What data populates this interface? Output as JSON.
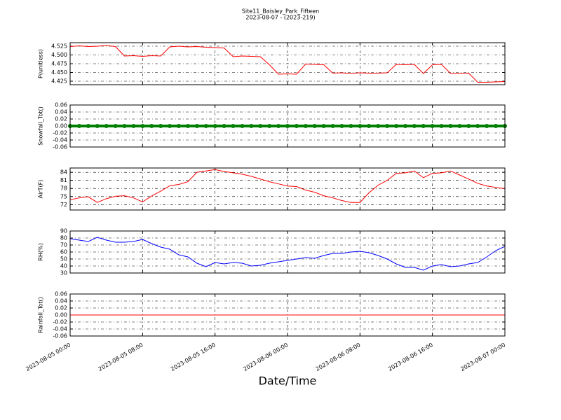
{
  "chart_data": [
    {
      "type": "line",
      "title": "Site11_Baisley_Park_Fifteen",
      "subtitle": "2023-08-07 - (2023-219)",
      "ylabel": "P(unitless)",
      "color": "#ff0000",
      "grid": true,
      "xlim": [
        "2023-08-05 00:00",
        "2023-08-07 00:00"
      ],
      "ylim": [
        4.415,
        4.535
      ],
      "yticks": [
        4.425,
        {
          "value": 4.45,
          "label": "4.450"
        },
        4.475,
        {
          "value": 4.5,
          "label": "4.500"
        },
        4.525
      ],
      "x": [
        "2023-08-05 00:00",
        "2023-08-05 01:00",
        "2023-08-05 02:00",
        "2023-08-05 03:00",
        "2023-08-05 04:00",
        "2023-08-05 05:00",
        "2023-08-05 06:00",
        "2023-08-05 07:00",
        "2023-08-05 08:00",
        "2023-08-05 09:00",
        "2023-08-05 10:00",
        "2023-08-05 11:00",
        "2023-08-05 12:00",
        "2023-08-05 13:00",
        "2023-08-05 14:00",
        "2023-08-05 15:00",
        "2023-08-05 16:00",
        "2023-08-05 17:00",
        "2023-08-05 18:00",
        "2023-08-05 19:00",
        "2023-08-05 20:00",
        "2023-08-05 21:00",
        "2023-08-05 22:00",
        "2023-08-05 23:00",
        "2023-08-06 00:00",
        "2023-08-06 01:00",
        "2023-08-06 02:00",
        "2023-08-06 03:00",
        "2023-08-06 04:00",
        "2023-08-06 05:00",
        "2023-08-06 06:00",
        "2023-08-06 07:00",
        "2023-08-06 08:00",
        "2023-08-06 09:00",
        "2023-08-06 10:00",
        "2023-08-06 11:00",
        "2023-08-06 12:00",
        "2023-08-06 13:00",
        "2023-08-06 14:00",
        "2023-08-06 15:00",
        "2023-08-06 16:00",
        "2023-08-06 17:00",
        "2023-08-06 18:00",
        "2023-08-06 19:00",
        "2023-08-06 20:00",
        "2023-08-06 21:00",
        "2023-08-06 22:00",
        "2023-08-06 23:00",
        "2023-08-07 00:00"
      ],
      "values": [
        4.524,
        4.526,
        4.524,
        4.525,
        4.527,
        4.524,
        4.497,
        4.498,
        4.496,
        4.498,
        4.497,
        4.523,
        4.525,
        4.523,
        4.524,
        4.522,
        4.521,
        4.52,
        4.495,
        4.497,
        4.496,
        4.495,
        4.472,
        4.445,
        4.446,
        4.445,
        4.474,
        4.473,
        4.472,
        4.448,
        4.449,
        4.447,
        4.449,
        4.448,
        4.448,
        4.449,
        4.473,
        4.472,
        4.473,
        4.447,
        4.472,
        4.473,
        4.447,
        4.447,
        4.448,
        4.422,
        4.422,
        4.423,
        4.424
      ]
    },
    {
      "type": "line",
      "ylabel": "Snowfall_Tot()",
      "color": "#008000",
      "marker": true,
      "grid": true,
      "xlim": [
        "2023-08-05 00:00",
        "2023-08-07 00:00"
      ],
      "ylim": [
        -0.06,
        0.06
      ],
      "yticks": [
        -0.06,
        -0.04,
        -0.02,
        {
          "value": 0,
          "label": "0.00"
        },
        0.02,
        0.04,
        0.06
      ],
      "x": [
        "2023-08-05 00:00",
        "2023-08-05 01:00",
        "2023-08-05 02:00",
        "2023-08-05 03:00",
        "2023-08-05 04:00",
        "2023-08-05 05:00",
        "2023-08-05 06:00",
        "2023-08-05 07:00",
        "2023-08-05 08:00",
        "2023-08-05 09:00",
        "2023-08-05 10:00",
        "2023-08-05 11:00",
        "2023-08-05 12:00",
        "2023-08-05 13:00",
        "2023-08-05 14:00",
        "2023-08-05 15:00",
        "2023-08-05 16:00",
        "2023-08-05 17:00",
        "2023-08-05 18:00",
        "2023-08-05 19:00",
        "2023-08-05 20:00",
        "2023-08-05 21:00",
        "2023-08-05 22:00",
        "2023-08-05 23:00",
        "2023-08-06 00:00",
        "2023-08-06 01:00",
        "2023-08-06 02:00",
        "2023-08-06 03:00",
        "2023-08-06 04:00",
        "2023-08-06 05:00",
        "2023-08-06 06:00",
        "2023-08-06 07:00",
        "2023-08-06 08:00",
        "2023-08-06 09:00",
        "2023-08-06 10:00",
        "2023-08-06 11:00",
        "2023-08-06 12:00",
        "2023-08-06 13:00",
        "2023-08-06 14:00",
        "2023-08-06 15:00",
        "2023-08-06 16:00",
        "2023-08-06 17:00",
        "2023-08-06 18:00",
        "2023-08-06 19:00",
        "2023-08-06 20:00",
        "2023-08-06 21:00",
        "2023-08-06 22:00",
        "2023-08-06 23:00",
        "2023-08-07 00:00"
      ],
      "values": [
        0,
        0,
        0,
        0,
        0,
        0,
        0,
        0,
        0,
        0,
        0,
        0,
        0,
        0,
        0,
        0,
        0,
        0,
        0,
        0,
        0,
        0,
        0,
        0,
        0,
        0,
        0,
        0,
        0,
        0,
        0,
        0,
        0,
        0,
        0,
        0,
        0,
        0,
        0,
        0,
        0,
        0,
        0,
        0,
        0,
        0,
        0,
        0,
        0
      ]
    },
    {
      "type": "line",
      "ylabel": "AirT(F)",
      "color": "#ff0000",
      "grid": true,
      "xlim": [
        "2023-08-05 00:00",
        "2023-08-07 00:00"
      ],
      "ylim": [
        70,
        85.6
      ],
      "yticks": [
        72,
        75,
        78,
        81,
        84
      ],
      "x": [
        "2023-08-05 00:00",
        "2023-08-05 01:00",
        "2023-08-05 02:00",
        "2023-08-05 03:00",
        "2023-08-05 04:00",
        "2023-08-05 05:00",
        "2023-08-05 06:00",
        "2023-08-05 07:00",
        "2023-08-05 08:00",
        "2023-08-05 09:00",
        "2023-08-05 10:00",
        "2023-08-05 11:00",
        "2023-08-05 12:00",
        "2023-08-05 13:00",
        "2023-08-05 14:00",
        "2023-08-05 15:00",
        "2023-08-05 16:00",
        "2023-08-05 17:00",
        "2023-08-05 18:00",
        "2023-08-05 19:00",
        "2023-08-05 20:00",
        "2023-08-05 21:00",
        "2023-08-05 22:00",
        "2023-08-05 23:00",
        "2023-08-06 00:00",
        "2023-08-06 01:00",
        "2023-08-06 02:00",
        "2023-08-06 03:00",
        "2023-08-06 04:00",
        "2023-08-06 05:00",
        "2023-08-06 06:00",
        "2023-08-06 07:00",
        "2023-08-06 08:00",
        "2023-08-06 09:00",
        "2023-08-06 10:00",
        "2023-08-06 11:00",
        "2023-08-06 12:00",
        "2023-08-06 13:00",
        "2023-08-06 14:00",
        "2023-08-06 15:00",
        "2023-08-06 16:00",
        "2023-08-06 17:00",
        "2023-08-06 18:00",
        "2023-08-06 19:00",
        "2023-08-06 20:00",
        "2023-08-06 21:00",
        "2023-08-06 22:00",
        "2023-08-06 23:00",
        "2023-08-07 00:00"
      ],
      "values": [
        73.8,
        74.5,
        74.9,
        72.8,
        74.2,
        75.1,
        75.3,
        74.5,
        73,
        75.2,
        77,
        79,
        79.5,
        80.5,
        84,
        84.5,
        85,
        84.3,
        83.8,
        83.3,
        82.5,
        81.5,
        80.5,
        79.7,
        78.9,
        78.7,
        77.4,
        76.6,
        75.3,
        74.5,
        73.5,
        72.8,
        72.8,
        76.4,
        79.2,
        81,
        83.6,
        83.8,
        84.5,
        82,
        83.6,
        83.8,
        84.5,
        83,
        81.5,
        79.9,
        78.9,
        78.4,
        77.9
      ]
    },
    {
      "type": "line",
      "ylabel": "RH(%)",
      "color": "#0000ff",
      "grid": true,
      "xlim": [
        "2023-08-05 00:00",
        "2023-08-07 00:00"
      ],
      "ylim": [
        30,
        90
      ],
      "yticks": [
        30,
        40,
        50,
        60,
        70,
        80,
        90
      ],
      "x": [
        "2023-08-05 00:00",
        "2023-08-05 01:00",
        "2023-08-05 02:00",
        "2023-08-05 03:00",
        "2023-08-05 04:00",
        "2023-08-05 05:00",
        "2023-08-05 06:00",
        "2023-08-05 07:00",
        "2023-08-05 08:00",
        "2023-08-05 09:00",
        "2023-08-05 10:00",
        "2023-08-05 11:00",
        "2023-08-05 12:00",
        "2023-08-05 13:00",
        "2023-08-05 14:00",
        "2023-08-05 15:00",
        "2023-08-05 16:00",
        "2023-08-05 17:00",
        "2023-08-05 18:00",
        "2023-08-05 19:00",
        "2023-08-05 20:00",
        "2023-08-05 21:00",
        "2023-08-05 22:00",
        "2023-08-05 23:00",
        "2023-08-06 00:00",
        "2023-08-06 01:00",
        "2023-08-06 02:00",
        "2023-08-06 03:00",
        "2023-08-06 04:00",
        "2023-08-06 05:00",
        "2023-08-06 06:00",
        "2023-08-06 07:00",
        "2023-08-06 08:00",
        "2023-08-06 09:00",
        "2023-08-06 10:00",
        "2023-08-06 11:00",
        "2023-08-06 12:00",
        "2023-08-06 13:00",
        "2023-08-06 14:00",
        "2023-08-06 15:00",
        "2023-08-06 16:00",
        "2023-08-06 17:00",
        "2023-08-06 18:00",
        "2023-08-06 19:00",
        "2023-08-06 20:00",
        "2023-08-06 21:00",
        "2023-08-06 22:00",
        "2023-08-06 23:00",
        "2023-08-07 00:00"
      ],
      "values": [
        79,
        77,
        75,
        81,
        77,
        74,
        74,
        75,
        78,
        72,
        67,
        64,
        56,
        53,
        44,
        39,
        45,
        43,
        45,
        44,
        40,
        41,
        44,
        46,
        48,
        50,
        52,
        51,
        55,
        58,
        58,
        60,
        61,
        59,
        55,
        50,
        43,
        38,
        38,
        34,
        40,
        42,
        39,
        40,
        43,
        45,
        53,
        62,
        68
      ]
    },
    {
      "type": "line",
      "ylabel": "Rainfall_Tot()",
      "xlabel": "Date/Time",
      "color": "#ff0000",
      "grid": true,
      "xlim": [
        "2023-08-05 00:00",
        "2023-08-07 00:00"
      ],
      "xticks": [
        "2023-08-05 00:00",
        "2023-08-05 08:00",
        "2023-08-05 16:00",
        "2023-08-06 00:00",
        "2023-08-06 08:00",
        "2023-08-06 16:00",
        "2023-08-07 00:00"
      ],
      "ylim": [
        -0.06,
        0.06
      ],
      "yticks": [
        -0.06,
        -0.04,
        -0.02,
        {
          "value": 0,
          "label": "0.00"
        },
        0.02,
        0.04,
        0.06
      ],
      "x": [
        "2023-08-05 00:00",
        "2023-08-05 01:00",
        "2023-08-05 02:00",
        "2023-08-05 03:00",
        "2023-08-05 04:00",
        "2023-08-05 05:00",
        "2023-08-05 06:00",
        "2023-08-05 07:00",
        "2023-08-05 08:00",
        "2023-08-05 09:00",
        "2023-08-05 10:00",
        "2023-08-05 11:00",
        "2023-08-05 12:00",
        "2023-08-05 13:00",
        "2023-08-05 14:00",
        "2023-08-05 15:00",
        "2023-08-05 16:00",
        "2023-08-05 17:00",
        "2023-08-05 18:00",
        "2023-08-05 19:00",
        "2023-08-05 20:00",
        "2023-08-05 21:00",
        "2023-08-05 22:00",
        "2023-08-05 23:00",
        "2023-08-06 00:00",
        "2023-08-06 01:00",
        "2023-08-06 02:00",
        "2023-08-06 03:00",
        "2023-08-06 04:00",
        "2023-08-06 05:00",
        "2023-08-06 06:00",
        "2023-08-06 07:00",
        "2023-08-06 08:00",
        "2023-08-06 09:00",
        "2023-08-06 10:00",
        "2023-08-06 11:00",
        "2023-08-06 12:00",
        "2023-08-06 13:00",
        "2023-08-06 14:00",
        "2023-08-06 15:00",
        "2023-08-06 16:00",
        "2023-08-06 17:00",
        "2023-08-06 18:00",
        "2023-08-06 19:00",
        "2023-08-06 20:00",
        "2023-08-06 21:00",
        "2023-08-06 22:00",
        "2023-08-06 23:00",
        "2023-08-07 00:00"
      ],
      "values": [
        0,
        0,
        0,
        0,
        0,
        0,
        0,
        0,
        0,
        0,
        0,
        0,
        0,
        0,
        0,
        0,
        0,
        0,
        0,
        0,
        0,
        0,
        0,
        0,
        0,
        0,
        0,
        0,
        0,
        0,
        0,
        0,
        0,
        0,
        0,
        0,
        0,
        0,
        0,
        0,
        0,
        0,
        0,
        0,
        0,
        0,
        0,
        0,
        0
      ]
    }
  ]
}
